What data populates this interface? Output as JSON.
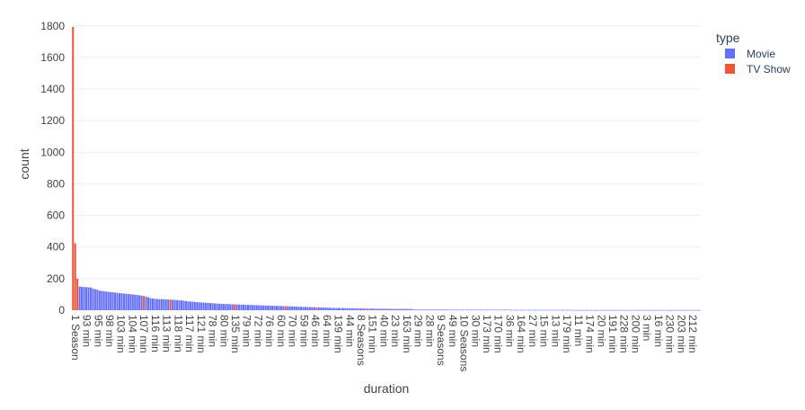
{
  "chart_data": {
    "type": "bar",
    "xlabel": "duration",
    "ylabel": "count",
    "ylim": [
      0,
      1850
    ],
    "yticks": [
      0,
      200,
      400,
      600,
      800,
      1000,
      1200,
      1400,
      1600,
      1800
    ],
    "grid": true,
    "legend": {
      "title": "type",
      "placement": "top-right",
      "entries": [
        {
          "name": "Movie",
          "color": "#636efa"
        },
        {
          "name": "TV Show",
          "color": "#ef553b"
        }
      ]
    },
    "tick_labels": [
      "1 Season",
      "93 min",
      "95 min",
      "98 min",
      "103 min",
      "104 min",
      "107 min",
      "116 min",
      "113 min",
      "118 min",
      "117 min",
      "121 min",
      "78 min",
      "80 min",
      "135 min",
      "79 min",
      "72 min",
      "76 min",
      "60 min",
      "70 min",
      "59 min",
      "46 min",
      "64 min",
      "139 min",
      "44 min",
      "8 Seasons",
      "151 min",
      "40 min",
      "23 min",
      "163 min",
      "29 min",
      "28 min",
      "9 Seasons",
      "49 min",
      "10 Seasons",
      "30 min",
      "173 min",
      "170 min",
      "36 min",
      "164 min",
      "27 min",
      "15 min",
      "13 min",
      "179 min",
      "11 min",
      "174 min",
      "20 min",
      "191 min",
      "228 min",
      "200 min",
      "3 min",
      "16 min",
      "230 min",
      "203 min",
      "212 min"
    ],
    "series": [
      {
        "name": "Movie",
        "color": "#636efa"
      },
      {
        "name": "TV Show",
        "color": "#ef553b"
      }
    ],
    "bars": [
      {
        "s": 1,
        "v": 1793
      },
      {
        "s": 1,
        "v": 425
      },
      {
        "s": 1,
        "v": 199
      },
      {
        "s": 0,
        "v": 150
      },
      {
        "s": 0,
        "v": 148
      },
      {
        "s": 0,
        "v": 147
      },
      {
        "s": 0,
        "v": 146
      },
      {
        "s": 0,
        "v": 145
      },
      {
        "s": 0,
        "v": 144
      },
      {
        "s": 0,
        "v": 137
      },
      {
        "s": 0,
        "v": 133
      },
      {
        "s": 0,
        "v": 130
      },
      {
        "s": 0,
        "v": 124
      },
      {
        "s": 0,
        "v": 122
      },
      {
        "s": 0,
        "v": 120
      },
      {
        "s": 0,
        "v": 118
      },
      {
        "s": 0,
        "v": 116
      },
      {
        "s": 0,
        "v": 115
      },
      {
        "s": 0,
        "v": 113
      },
      {
        "s": 0,
        "v": 112
      },
      {
        "s": 0,
        "v": 110
      },
      {
        "s": 0,
        "v": 108
      },
      {
        "s": 0,
        "v": 107
      },
      {
        "s": 0,
        "v": 105
      },
      {
        "s": 0,
        "v": 104
      },
      {
        "s": 0,
        "v": 103
      },
      {
        "s": 0,
        "v": 101
      },
      {
        "s": 0,
        "v": 100
      },
      {
        "s": 0,
        "v": 98
      },
      {
        "s": 0,
        "v": 97
      },
      {
        "s": 0,
        "v": 94
      },
      {
        "s": 0,
        "v": 92
      },
      {
        "s": 1,
        "v": 90
      },
      {
        "s": 0,
        "v": 86
      },
      {
        "s": 0,
        "v": 82
      },
      {
        "s": 0,
        "v": 77
      },
      {
        "s": 0,
        "v": 74
      },
      {
        "s": 0,
        "v": 72
      },
      {
        "s": 0,
        "v": 71
      },
      {
        "s": 0,
        "v": 70
      },
      {
        "s": 0,
        "v": 70
      },
      {
        "s": 0,
        "v": 69
      },
      {
        "s": 0,
        "v": 68
      },
      {
        "s": 0,
        "v": 67
      },
      {
        "s": 1,
        "v": 67
      },
      {
        "s": 0,
        "v": 66
      },
      {
        "s": 0,
        "v": 65
      },
      {
        "s": 0,
        "v": 64
      },
      {
        "s": 0,
        "v": 63
      },
      {
        "s": 0,
        "v": 62
      },
      {
        "s": 0,
        "v": 60
      },
      {
        "s": 0,
        "v": 58
      },
      {
        "s": 0,
        "v": 56
      },
      {
        "s": 0,
        "v": 55
      },
      {
        "s": 0,
        "v": 54
      },
      {
        "s": 0,
        "v": 52
      },
      {
        "s": 0,
        "v": 51
      },
      {
        "s": 0,
        "v": 50
      },
      {
        "s": 0,
        "v": 49
      },
      {
        "s": 0,
        "v": 48
      },
      {
        "s": 0,
        "v": 47
      },
      {
        "s": 0,
        "v": 46
      },
      {
        "s": 0,
        "v": 45
      },
      {
        "s": 0,
        "v": 44
      },
      {
        "s": 0,
        "v": 43
      },
      {
        "s": 0,
        "v": 42
      },
      {
        "s": 0,
        "v": 41
      },
      {
        "s": 0,
        "v": 40
      },
      {
        "s": 0,
        "v": 40
      },
      {
        "s": 0,
        "v": 39
      },
      {
        "s": 0,
        "v": 39
      },
      {
        "s": 0,
        "v": 38
      },
      {
        "s": 0,
        "v": 37
      },
      {
        "s": 1,
        "v": 37
      },
      {
        "s": 0,
        "v": 36
      },
      {
        "s": 0,
        "v": 36
      },
      {
        "s": 0,
        "v": 35
      },
      {
        "s": 0,
        "v": 35
      },
      {
        "s": 0,
        "v": 34
      },
      {
        "s": 0,
        "v": 34
      },
      {
        "s": 0,
        "v": 33
      },
      {
        "s": 0,
        "v": 33
      },
      {
        "s": 0,
        "v": 32
      },
      {
        "s": 0,
        "v": 32
      },
      {
        "s": 0,
        "v": 31
      },
      {
        "s": 0,
        "v": 31
      },
      {
        "s": 0,
        "v": 30
      },
      {
        "s": 0,
        "v": 30
      },
      {
        "s": 0,
        "v": 29
      },
      {
        "s": 0,
        "v": 29
      },
      {
        "s": 0,
        "v": 28
      },
      {
        "s": 0,
        "v": 28
      },
      {
        "s": 0,
        "v": 27
      },
      {
        "s": 0,
        "v": 27
      },
      {
        "s": 0,
        "v": 26
      },
      {
        "s": 0,
        "v": 26
      },
      {
        "s": 1,
        "v": 25
      },
      {
        "s": 0,
        "v": 25
      },
      {
        "s": 0,
        "v": 24
      },
      {
        "s": 0,
        "v": 24
      },
      {
        "s": 0,
        "v": 23
      },
      {
        "s": 0,
        "v": 23
      },
      {
        "s": 0,
        "v": 22
      },
      {
        "s": 0,
        "v": 22
      },
      {
        "s": 0,
        "v": 21
      },
      {
        "s": 0,
        "v": 21
      },
      {
        "s": 0,
        "v": 20
      },
      {
        "s": 0,
        "v": 20
      },
      {
        "s": 0,
        "v": 19
      },
      {
        "s": 0,
        "v": 19
      },
      {
        "s": 1,
        "v": 18
      },
      {
        "s": 0,
        "v": 18
      },
      {
        "s": 0,
        "v": 17
      },
      {
        "s": 0,
        "v": 17
      },
      {
        "s": 0,
        "v": 16
      },
      {
        "s": 0,
        "v": 16
      },
      {
        "s": 0,
        "v": 15
      },
      {
        "s": 0,
        "v": 15
      },
      {
        "s": 0,
        "v": 14
      },
      {
        "s": 0,
        "v": 14
      },
      {
        "s": 0,
        "v": 14
      },
      {
        "s": 0,
        "v": 13
      },
      {
        "s": 0,
        "v": 13
      },
      {
        "s": 0,
        "v": 13
      },
      {
        "s": 0,
        "v": 12
      },
      {
        "s": 0,
        "v": 12
      },
      {
        "s": 0,
        "v": 12
      },
      {
        "s": 0,
        "v": 12
      },
      {
        "s": 0,
        "v": 11
      },
      {
        "s": 0,
        "v": 11
      },
      {
        "s": 0,
        "v": 11
      },
      {
        "s": 0,
        "v": 11
      },
      {
        "s": 0,
        "v": 10
      },
      {
        "s": 1,
        "v": 10
      },
      {
        "s": 0,
        "v": 10
      },
      {
        "s": 0,
        "v": 10
      },
      {
        "s": 0,
        "v": 10
      },
      {
        "s": 0,
        "v": 9
      },
      {
        "s": 0,
        "v": 9
      },
      {
        "s": 0,
        "v": 9
      },
      {
        "s": 0,
        "v": 9
      },
      {
        "s": 0,
        "v": 9
      },
      {
        "s": 1,
        "v": 9
      },
      {
        "s": 0,
        "v": 9
      },
      {
        "s": 0,
        "v": 8
      },
      {
        "s": 0,
        "v": 8
      },
      {
        "s": 0,
        "v": 8
      },
      {
        "s": 0,
        "v": 8
      },
      {
        "s": 0,
        "v": 8
      },
      {
        "s": 0,
        "v": 8
      },
      {
        "s": 0,
        "v": 8
      },
      {
        "s": 0,
        "v": 8
      },
      {
        "s": 0,
        "v": 8
      },
      {
        "s": 0,
        "v": 8
      },
      {
        "s": 0,
        "v": 4
      },
      {
        "s": 0,
        "v": 4
      },
      {
        "s": 0,
        "v": 4
      },
      {
        "s": 0,
        "v": 4
      },
      {
        "s": 0,
        "v": 4
      },
      {
        "s": 0,
        "v": 4
      },
      {
        "s": 0,
        "v": 4
      },
      {
        "s": 0,
        "v": 4
      },
      {
        "s": 0,
        "v": 4
      },
      {
        "s": 0,
        "v": 4
      },
      {
        "s": 0,
        "v": 4
      },
      {
        "s": 0,
        "v": 4
      },
      {
        "s": 0,
        "v": 4
      },
      {
        "s": 0,
        "v": 4
      },
      {
        "s": 0,
        "v": 4
      },
      {
        "s": 0,
        "v": 4
      },
      {
        "s": 0,
        "v": 3
      },
      {
        "s": 0,
        "v": 3
      },
      {
        "s": 0,
        "v": 3
      },
      {
        "s": 0,
        "v": 3
      },
      {
        "s": 0,
        "v": 3
      },
      {
        "s": 0,
        "v": 3
      },
      {
        "s": 0,
        "v": 3
      },
      {
        "s": 0,
        "v": 3
      },
      {
        "s": 0,
        "v": 3
      },
      {
        "s": 0,
        "v": 3
      },
      {
        "s": 0,
        "v": 3
      },
      {
        "s": 0,
        "v": 3
      },
      {
        "s": 0,
        "v": 3
      },
      {
        "s": 0,
        "v": 3
      },
      {
        "s": 0,
        "v": 3
      },
      {
        "s": 0,
        "v": 3
      },
      {
        "s": 0,
        "v": 3
      },
      {
        "s": 0,
        "v": 3
      },
      {
        "s": 0,
        "v": 3
      },
      {
        "s": 0,
        "v": 3
      },
      {
        "s": 0,
        "v": 3
      },
      {
        "s": 0,
        "v": 3
      },
      {
        "s": 0,
        "v": 3
      },
      {
        "s": 0,
        "v": 3
      },
      {
        "s": 0,
        "v": 3
      },
      {
        "s": 1,
        "v": 3
      },
      {
        "s": 0,
        "v": 3
      },
      {
        "s": 0,
        "v": 3
      },
      {
        "s": 0,
        "v": 2
      },
      {
        "s": 0,
        "v": 2
      },
      {
        "s": 0,
        "v": 2
      },
      {
        "s": 0,
        "v": 2
      },
      {
        "s": 0,
        "v": 2
      },
      {
        "s": 0,
        "v": 2
      },
      {
        "s": 0,
        "v": 2
      },
      {
        "s": 0,
        "v": 2
      },
      {
        "s": 0,
        "v": 2
      },
      {
        "s": 0,
        "v": 2
      },
      {
        "s": 0,
        "v": 2
      },
      {
        "s": 0,
        "v": 2
      },
      {
        "s": 0,
        "v": 2
      },
      {
        "s": 0,
        "v": 2
      },
      {
        "s": 0,
        "v": 2
      },
      {
        "s": 0,
        "v": 2
      },
      {
        "s": 0,
        "v": 2
      },
      {
        "s": 0,
        "v": 2
      },
      {
        "s": 0,
        "v": 2
      },
      {
        "s": 0,
        "v": 2
      },
      {
        "s": 0,
        "v": 2
      },
      {
        "s": 0,
        "v": 2
      },
      {
        "s": 0,
        "v": 2
      },
      {
        "s": 0,
        "v": 2
      },
      {
        "s": 0,
        "v": 2
      },
      {
        "s": 0,
        "v": 2
      },
      {
        "s": 0,
        "v": 2
      },
      {
        "s": 0,
        "v": 2
      },
      {
        "s": 0,
        "v": 1
      },
      {
        "s": 0,
        "v": 1
      },
      {
        "s": 0,
        "v": 1
      },
      {
        "s": 0,
        "v": 1
      },
      {
        "s": 0,
        "v": 1
      },
      {
        "s": 0,
        "v": 1
      },
      {
        "s": 0,
        "v": 1
      },
      {
        "s": 0,
        "v": 1
      },
      {
        "s": 0,
        "v": 1
      },
      {
        "s": 0,
        "v": 1
      },
      {
        "s": 0,
        "v": 1
      },
      {
        "s": 0,
        "v": 1
      },
      {
        "s": 0,
        "v": 1
      },
      {
        "s": 0,
        "v": 1
      },
      {
        "s": 0,
        "v": 1
      },
      {
        "s": 0,
        "v": 1
      },
      {
        "s": 0,
        "v": 1
      },
      {
        "s": 0,
        "v": 1
      },
      {
        "s": 0,
        "v": 1
      },
      {
        "s": 0,
        "v": 1
      },
      {
        "s": 0,
        "v": 1
      },
      {
        "s": 0,
        "v": 1
      },
      {
        "s": 0,
        "v": 1
      },
      {
        "s": 0,
        "v": 1
      },
      {
        "s": 0,
        "v": 1
      },
      {
        "s": 0,
        "v": 1
      },
      {
        "s": 0,
        "v": 1
      },
      {
        "s": 0,
        "v": 1
      },
      {
        "s": 0,
        "v": 1
      },
      {
        "s": 0,
        "v": 1
      },
      {
        "s": 0,
        "v": 1
      },
      {
        "s": 0,
        "v": 1
      },
      {
        "s": 0,
        "v": 1
      },
      {
        "s": 0,
        "v": 1
      },
      {
        "s": 0,
        "v": 1
      },
      {
        "s": 0,
        "v": 1
      },
      {
        "s": 0,
        "v": 1
      },
      {
        "s": 0,
        "v": 1
      },
      {
        "s": 0,
        "v": 1
      },
      {
        "s": 0,
        "v": 1
      },
      {
        "s": 0,
        "v": 1
      },
      {
        "s": 0,
        "v": 1
      },
      {
        "s": 0,
        "v": 1
      },
      {
        "s": 0,
        "v": 1
      },
      {
        "s": 0,
        "v": 1
      },
      {
        "s": 0,
        "v": 1
      },
      {
        "s": 0,
        "v": 1
      },
      {
        "s": 0,
        "v": 1
      },
      {
        "s": 0,
        "v": 1
      },
      {
        "s": 0,
        "v": 1
      },
      {
        "s": 0,
        "v": 1
      },
      {
        "s": 0,
        "v": 1
      },
      {
        "s": 0,
        "v": 1
      },
      {
        "s": 0,
        "v": 1
      },
      {
        "s": 0,
        "v": 1
      },
      {
        "s": 0,
        "v": 1
      },
      {
        "s": 0,
        "v": 1
      },
      {
        "s": 0,
        "v": 1
      }
    ]
  }
}
